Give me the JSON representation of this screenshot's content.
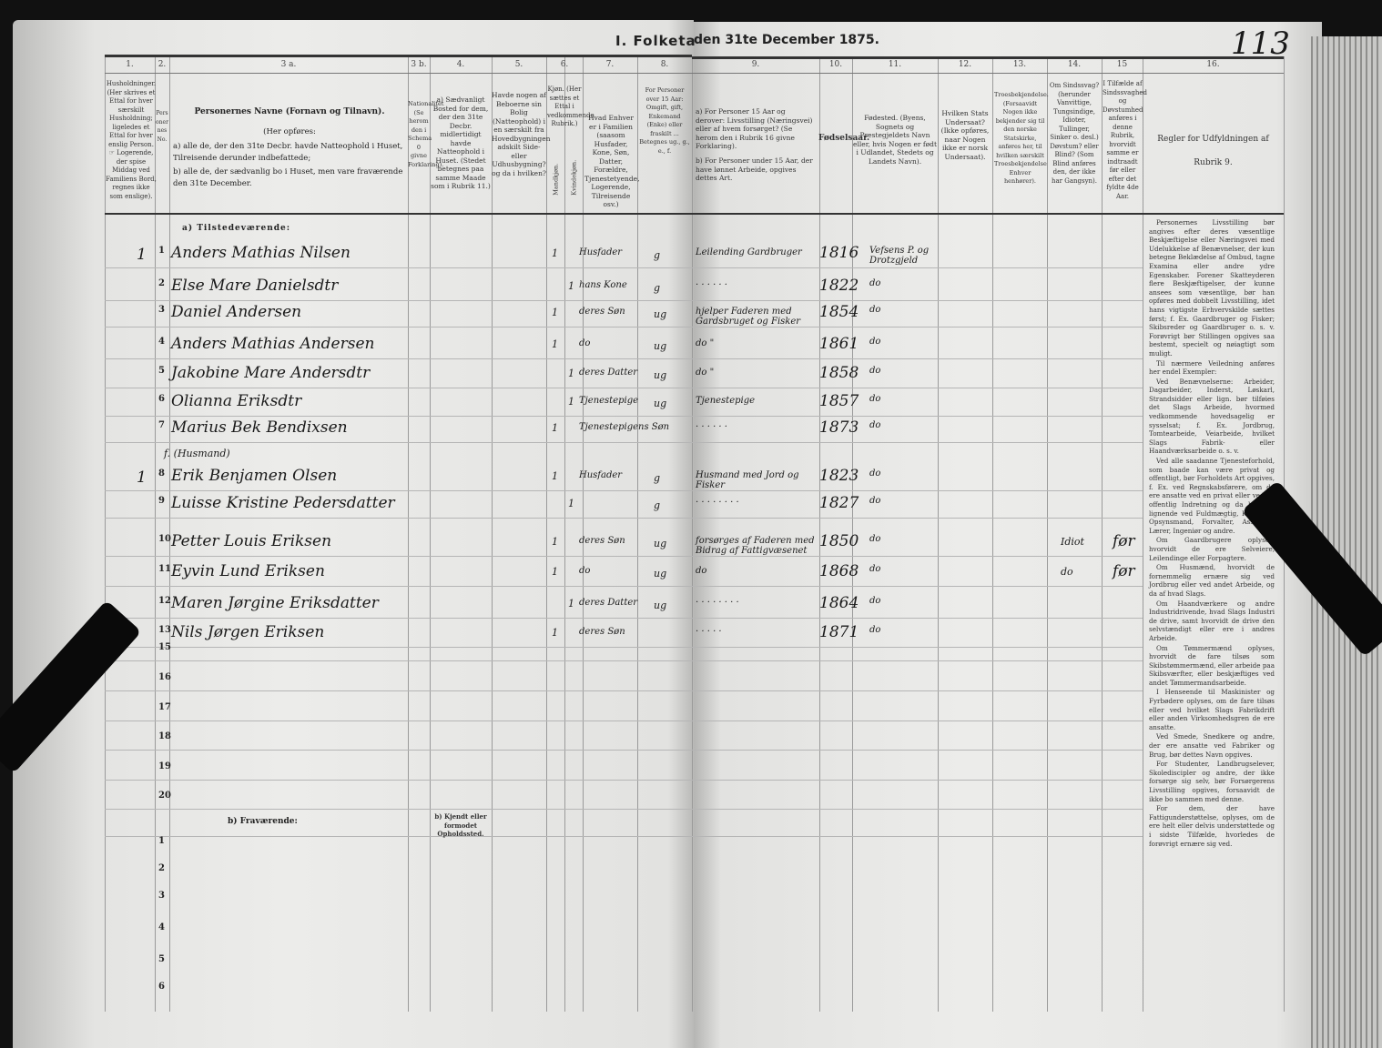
{
  "title_left": "I. Folketa",
  "title_right": "den 31te December 1875.",
  "page_number": "113",
  "column_numbers": [
    "1.",
    "2.",
    "3 a.",
    "3 b.",
    "4.",
    "5.",
    "6.",
    "7.",
    "8.",
    "9.",
    "10.",
    "11.",
    "12.",
    "13.",
    "14.",
    "15",
    "16."
  ],
  "headers": {
    "c1": "Husholdninger. (Her skrives et Ettal for hver særskilt Husholdning; ligeledes et Ettal for hver enslig Person. ☞ Logerende, der spise Middag ved Familiens Bord, regnes ikke som enslige).",
    "c2": "Personernes No.",
    "c3a_title": "Personernes Navne (Fornavn og Tilnavn).",
    "c3a_sub": "(Her opføres:",
    "c3a_a": "a) alle de, der den 31te Decbr. havde Natteophold i Huset, Tilreisende derunder indbefattede;",
    "c3a_b": "b) alle de, der sædvanlig bo i Huset, men vare fraværende den 31te December.",
    "c3b": "Nationalitet (Se herom den i Schema 0 givne Forklaring).",
    "c4": "a) Sædvanligt Bosted for dem, der den 31te Decbr. midlertidigt havde Natteophold i Huset. (Stedet betegnes paa samme Maade som i Rubrik 11.)",
    "c5": "Havde nogen af Beboerne sin Bolig (Natteophold) i en særskilt fra Hovedbygningen adskilt Side- eller Udhusbygning? og da i hvilken?",
    "c6": "Kjøn. (Her sættes et Ettal i vedkommende Rubrik.)",
    "c6_m": "Mandkjøn.",
    "c6_k": "Kvindekjøn.",
    "c7": "Hvad Enhver er i Familien (saasom Husfader, Kone, Søn, Datter, Forældre, Tjenestetyende, Logerende, Tilreisende osv.)",
    "c8": "For Personer over 15 Aar: Omgift, gift, Enkemand (Enke) eller fraskilt ... Betegnes ug., g., e., f.",
    "c9a": "a) For Personer 15 Aar og derover: Livsstilling (Næringsvei) eller af hvem forsørget? (Se herom den i Rubrik 16 givne Forklaring).",
    "c9b": "b) For Personer under 15 Aar, der have lønnet Arbeide, opgives dettes Art.",
    "c10": "Fødselsaar.",
    "c11": "Fødested. (Byens, Sognets og Prestegjeldets Navn eller, hvis Nogen er født i Udlandet, Stedets og Landets Navn).",
    "c12": "Hvilken Stats Undersaat? (Ikke opføres, naar Nogen ikke er norsk Undersaat).",
    "c13": "Troesbekjendelse. (Forsaavidt Nogen ikke bekjender sig til den norske Statskirke, anføres her, til hvilken særskilt Troesbekjendelse Enhver henhører).",
    "c14": "Om Sindssvag? (herunder Vanvittige, Tungsindige, Idioter, Tullinger, Sinker o. desl.) Døvstum? eller Blind? (Som Blind anføres den, der ikke har Gangsyn).",
    "c15": "I Tilfælde af Sindssvaghed og Døvstumhed anføres i denne Rubrik, hvorvidt samme er indtraadt før eller efter det fyldte 4de Aar.",
    "c16": "Regler for Udfyldningen af Rubrik 9."
  },
  "section_present": "a) Tilstedeværende:",
  "section_absent": "b) Fraværende:",
  "absent_header": "b) Kjendt eller formodet Opholdssted.",
  "husmand_note": "f. (Husmand)",
  "rows": [
    {
      "hh": "1",
      "no": "1",
      "name": "Anders Mathias Nilsen",
      "m": "1",
      "f": "",
      "role": "Husfader",
      "civil": "g",
      "occ": "Leilending Gardbruger",
      "year": "1816",
      "place": "Vefsens P. og Drotzgjeld",
      "c14": "",
      "c15": ""
    },
    {
      "hh": "",
      "no": "2",
      "name": "Else Mare Danielsdtr",
      "m": "",
      "f": "1",
      "role": "hans Kone",
      "civil": "g",
      "occ": "· · · · · ·",
      "year": "1822",
      "place": "do",
      "c14": "",
      "c15": ""
    },
    {
      "hh": "",
      "no": "3",
      "name": "Daniel Andersen",
      "m": "1",
      "f": "",
      "role": "deres Søn",
      "civil": "ug",
      "occ": "hjelper Faderen med Gardsbruget og Fisker",
      "year": "1854",
      "place": "do",
      "c14": "",
      "c15": ""
    },
    {
      "hh": "",
      "no": "4",
      "name": "Anders Mathias Andersen",
      "m": "1",
      "f": "",
      "role": "do",
      "civil": "ug",
      "occ": "do  \"",
      "year": "1861",
      "place": "do",
      "c14": "",
      "c15": ""
    },
    {
      "hh": "",
      "no": "5",
      "name": "Jakobine Mare Andersdtr",
      "m": "",
      "f": "1",
      "role": "deres Datter",
      "civil": "ug",
      "occ": "do  \"",
      "year": "1858",
      "place": "do",
      "c14": "",
      "c15": ""
    },
    {
      "hh": "",
      "no": "6",
      "name": "Olianna Eriksdtr",
      "m": "",
      "f": "1",
      "role": "Tjenestepige",
      "civil": "ug",
      "occ": "Tjenestepige",
      "year": "1857",
      "place": "do",
      "c14": "",
      "c15": ""
    },
    {
      "hh": "",
      "no": "7",
      "name": "Marius Bek Bendixsen",
      "m": "1",
      "f": "",
      "role": "Tjenestepigens Søn",
      "civil": "",
      "occ": "· · · · · ·",
      "year": "1873",
      "place": "do",
      "c14": "",
      "c15": ""
    },
    {
      "hh": "1",
      "no": "8",
      "name": "Erik Benjamen Olsen",
      "m": "1",
      "f": "",
      "role": "Husfader",
      "civil": "g",
      "occ": "Husmand med Jord og Fisker",
      "year": "1823",
      "place": "do",
      "c14": "",
      "c15": ""
    },
    {
      "hh": "",
      "no": "9",
      "name": "Luisse Kristine Pedersdatter",
      "m": "",
      "f": "1",
      "role": "",
      "civil": "g",
      "occ": "· · · · · · · ·",
      "year": "1827",
      "place": "do",
      "c14": "",
      "c15": ""
    },
    {
      "hh": "",
      "no": "10",
      "name": "Petter Louis Eriksen",
      "m": "1",
      "f": "",
      "role": "deres Søn",
      "civil": "ug",
      "occ": "forsørges af Faderen med Bidrag af Fattigvæsenet",
      "year": "1850",
      "place": "do",
      "c14": "Idiot",
      "c15": "før"
    },
    {
      "hh": "",
      "no": "11",
      "name": "Eyvin Lund Eriksen",
      "m": "1",
      "f": "",
      "role": "do",
      "civil": "ug",
      "occ": "do",
      "year": "1868",
      "place": "do",
      "c14": "do",
      "c15": "før"
    },
    {
      "hh": "",
      "no": "12",
      "name": "Maren Jørgine Eriksdatter",
      "m": "",
      "f": "1",
      "role": "deres Datter",
      "civil": "ug",
      "occ": "· · · · · · · ·",
      "year": "1864",
      "place": "do",
      "c14": "",
      "c15": ""
    },
    {
      "hh": "",
      "no": "13",
      "name": "Nils Jørgen Eriksen",
      "m": "1",
      "f": "",
      "role": "deres Søn",
      "civil": "",
      "occ": "· · · · ·",
      "year": "1871",
      "place": "do",
      "c14": "",
      "c15": ""
    }
  ],
  "empty_row_numbers": [
    "15",
    "16",
    "17",
    "18",
    "19",
    "20"
  ],
  "absent_row_numbers": [
    "1",
    "2",
    "3",
    "4",
    "5",
    "6"
  ],
  "rules_text": [
    "Personernes Livsstilling bør angives efter deres væsentlige Beskjæftigelse eller Næringsvei med Udelukkelse af Benævnelser, der kun betegne Beklædelse af Ombud, tagne Examina eller andre ydre Egenskaber. Forener Skatteyderen flere Beskjæftigelser, der kunne ansees som væsentlige, bør han opføres med dobbelt Livsstilling, idet hans vigtigste Erhvervskilde sættes først; f. Ex. Gaardbruger og Fisker; Skibsreder og Gaardbruger o. s. v. Forøvrigt bør Stillingen opgives saa bestemt, specielt og nøiagtigt som muligt.",
    "Til nærmere Veiledning anføres her endel Exempler:",
    "Ved Benævnelserne: Arbeider, Dagarbeider, Inderst, Løskarl, Strandsidder eller lign. bør tilføies det Slags Arbeide, hvormed vedkommende hovedsagelig er sysselsat; f. Ex. Jordbrug, Tomtearbeide, Veiarbeide, hvilket Slags Fabrik- eller Haandværksarbeide o. s. v.",
    "Ved alle saadanne Tjenesteforhold, som baade kan være privat og offentligt, bør Forholdets Art opgives, f. Ex. ved Regnskabsførere, om de ere ansatte ved en privat eller ved en offentlig Indretning og da hvilken; lignende ved Fuldmægtig, Kontorist, Opsynsmand, Forvalter, Assistent, Lærer, Ingeniør og andre.",
    "Om Gaardbrugere oplyses, hvorvidt de ere Selveiere, Leilendinge eller Forpagtere.",
    "Om Husmænd, hvorvidt de fornemmelig ernære sig ved Jordbrug eller ved andet Arbeide, og da af hvad Slags.",
    "Om Haandværkere og andre Industridrivende, hvad Slags Industri de drive, samt hvorvidt de drive den selvstændigt eller ere i andres Arbeide.",
    "Om Tømmermænd oplyses, hvorvidt de fare tilsøs som Skibstømmermænd, eller arbeide paa Skibsværfter, eller beskjæftiges ved andet Tømmermandsarbeide.",
    "I Henseende til Maskinister og Fyrbødere oplyses, om de fare tilsøs eller ved hvilket Slags Fabrikdrift eller anden Virksomhedsgren de ere ansatte.",
    "Ved Smede, Snedkere og andre, der ere ansatte ved Fabriker og Brug, bør dettes Navn opgives.",
    "For Studenter, Landbrugselever, Skolediscipler og andre, der ikke forsørge sig selv, bør Forsørgerens Livsstilling opgives, forsaavidt de ikke bo sammen med denne.",
    "For dem, der have Fattigunderstøttelse, oplyses, om de ere helt eller delvis understøttede og i sidste Tilfælde, hvorledes de forøvrigt ernære sig ved."
  ]
}
